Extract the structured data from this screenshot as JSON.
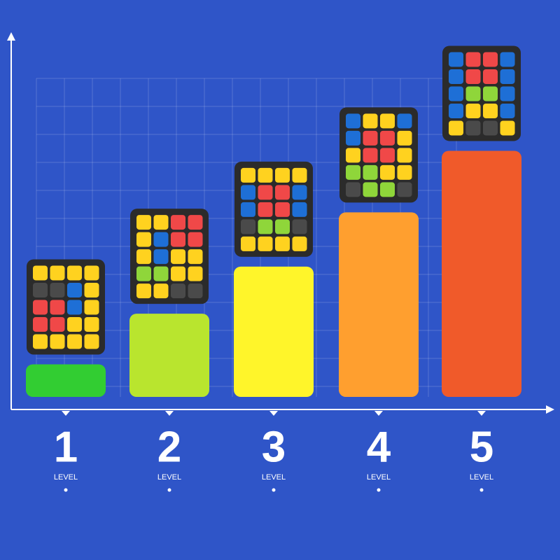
{
  "chart_data": {
    "type": "bar",
    "categories": [
      "1",
      "2",
      "3",
      "4",
      "5"
    ],
    "level_label": "LEVEL",
    "values": [
      9,
      23,
      36,
      51,
      68
    ],
    "colors": [
      "#32cd32",
      "#b9e52e",
      "#fff52a",
      "#ff9f2f",
      "#f05a2a"
    ],
    "ylim": [
      0,
      100
    ]
  }
}
